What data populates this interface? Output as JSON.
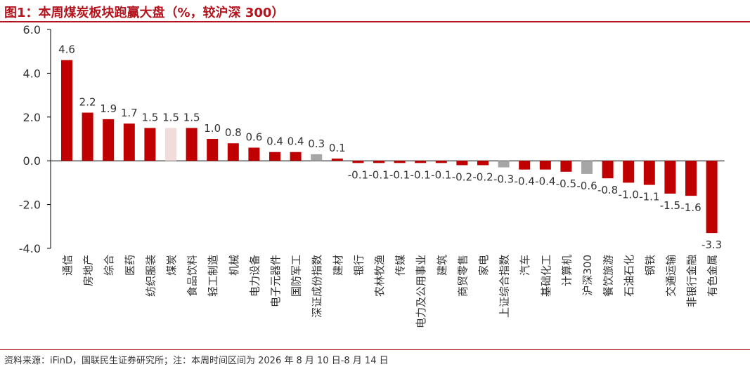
{
  "title": "图1：本周煤炭板块跑赢大盘（%，较沪深 300）",
  "source": "资料来源：iFinD，国联民生证券研究所；注：本周时间区间为 2026 年 8 月 10 日-8 月 14 日",
  "colors": {
    "accent": "#c00000",
    "highlight": "#f2dcdb",
    "benchmark": "#a6a6a6",
    "axis": "#000000",
    "text": "#333333"
  },
  "chart_data": {
    "type": "bar",
    "categories": [
      "通信",
      "房地产",
      "综合",
      "医药",
      "纺织服装",
      "煤炭",
      "食品饮料",
      "轻工制造",
      "机械",
      "电力设备",
      "电子元器件",
      "国防军工",
      "深证成份指数",
      "建材",
      "银行",
      "农林牧渔",
      "传媒",
      "电力及公用事业",
      "建筑",
      "商贸零售",
      "家电",
      "上证综合指数",
      "汽车",
      "基础化工",
      "计算机",
      "沪深300",
      "餐饮旅游",
      "石油石化",
      "钢铁",
      "交通运输",
      "非银行金融",
      "有色金属"
    ],
    "values": [
      4.6,
      2.2,
      1.9,
      1.7,
      1.5,
      1.5,
      1.5,
      1.0,
      0.8,
      0.6,
      0.4,
      0.4,
      0.3,
      0.1,
      -0.1,
      -0.1,
      -0.1,
      -0.1,
      -0.1,
      -0.2,
      -0.2,
      -0.3,
      -0.4,
      -0.4,
      -0.5,
      -0.6,
      -0.8,
      -1.0,
      -1.1,
      -1.5,
      -1.6,
      -3.3
    ],
    "data_labels": [
      "4.6",
      "2.2",
      "1.9",
      "1.7",
      "1.5",
      "1.5",
      "1.5",
      "1.0",
      "0.8",
      "0.6",
      "0.4",
      "0.4",
      "0.3",
      "0.1",
      "-0.1",
      "-0.1",
      "-0.1",
      "-0.1",
      "-0.1",
      "-0.2",
      "-0.2",
      "-0.3",
      "-0.4",
      "-0.4",
      "-0.5",
      "-0.6",
      "-0.8",
      "-1.0",
      "-1.1",
      "-1.5",
      "-1.6",
      "-3.3"
    ],
    "highlight_category": "煤炭",
    "benchmark_categories": [
      "深证成份指数",
      "上证综合指数",
      "沪深300"
    ],
    "yticks": [
      "6.0",
      "4.0",
      "2.0",
      "0.0",
      "-2.0",
      "-4.0"
    ],
    "ytick_values": [
      6,
      4,
      2,
      0,
      -2,
      -4
    ],
    "ylim": [
      -4,
      6
    ],
    "grid": false,
    "xlabel": "",
    "ylabel": ""
  }
}
